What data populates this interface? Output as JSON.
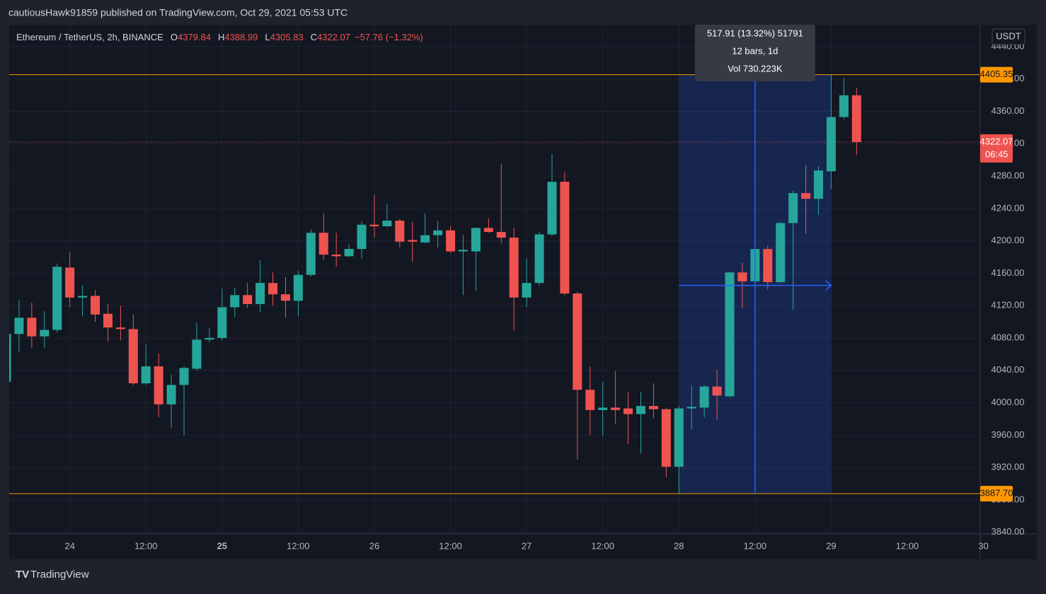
{
  "header": "cautiousHawk91859 published on TradingView.com, Oct 29, 2021 05:53 UTC",
  "footer": "TradingView",
  "chart_data": {
    "type": "candlestick",
    "legend": {
      "symbol": "Ethereum / TetherUS, 2h, BINANCE",
      "items": [
        {
          "label": "O",
          "value": "4379.84"
        },
        {
          "label": "H",
          "value": "4388.99"
        },
        {
          "label": "L",
          "value": "4305.83"
        },
        {
          "label": "C",
          "value": "4322.07"
        }
      ],
      "change": "−57.76 (−1.32%)"
    },
    "currency": "USDT",
    "categories": [
      null,
      null,
      null,
      null,
      null,
      "24",
      null,
      null,
      null,
      null,
      null,
      "12:00",
      null,
      null,
      null,
      null,
      null,
      "25",
      null,
      null,
      null,
      null,
      null,
      "12:00",
      null,
      null,
      null,
      null,
      null,
      "26",
      null,
      null,
      null,
      null,
      null,
      "12:00",
      null,
      null,
      null,
      null,
      null,
      "27",
      null,
      null,
      null,
      null,
      null,
      "12:00",
      null,
      null,
      null,
      null,
      null,
      "28",
      null,
      null,
      null,
      null,
      null,
      "12:00",
      null,
      null,
      null,
      null,
      null,
      "29",
      null,
      null
    ],
    "future_labels": [
      "12:00",
      "30"
    ],
    "open": [
      4026,
      4085,
      4105,
      4082,
      4090,
      4167,
      4130,
      4132,
      4110,
      4093,
      4091,
      4024,
      4045,
      3998,
      4022,
      4042,
      4078,
      4080,
      4118,
      4133,
      4122,
      4148,
      4134,
      4126,
      4158,
      4210,
      4183,
      4181,
      4190,
      4220,
      4218,
      4225,
      4201,
      4198,
      4207,
      4213,
      4187,
      4187,
      4216,
      4211,
      4204,
      4130,
      4148,
      4208,
      4273,
      4135,
      4016,
      3991,
      3994,
      3993,
      3986,
      3996,
      3992,
      3921,
      3993,
      3994,
      4020,
      4008,
      4161,
      4150,
      4190,
      4149,
      4222,
      4259,
      4252,
      4286,
      4353,
      4379.84
    ],
    "high": [
      4090,
      4127,
      4124,
      4113,
      4172,
      4186,
      4145,
      4139,
      4122,
      4120,
      4109,
      4072,
      4061,
      4035,
      4045,
      4099,
      4092,
      4141,
      4142,
      4148,
      4176,
      4161,
      4155,
      4163,
      4214,
      4234,
      4210,
      4196,
      4224,
      4257,
      4246,
      4227,
      4223,
      4234,
      4225,
      4218,
      4207,
      4217,
      4228,
      4295,
      4216,
      4178,
      4211,
      4307,
      4285,
      4137,
      4045,
      4026,
      4039,
      4013,
      4013,
      4024,
      3994,
      3996,
      4021,
      4022,
      4041,
      4162,
      4173,
      4194,
      4194,
      4224,
      4262,
      4294,
      4292,
      4405.35,
      4401,
      4388.99
    ],
    "low": [
      4020,
      4063,
      4068,
      4068,
      4087,
      4118,
      4107,
      4100,
      4076,
      4077,
      4022,
      4022,
      3982,
      3969,
      3960,
      4040,
      4075,
      4077,
      4106,
      4117,
      4112,
      4120,
      4105,
      4107,
      4156,
      4177,
      4168,
      4180,
      4178,
      4204,
      4217,
      4192,
      4174,
      4197,
      4192,
      4185,
      4133,
      4138,
      4210,
      4197,
      4089,
      4118,
      4145,
      4206,
      4133,
      3930,
      3960,
      3959,
      3974,
      3949,
      3937,
      3981,
      3908,
      3887.7,
      3967,
      3982,
      3979,
      4007,
      4117,
      4142,
      4140,
      4148,
      4115,
      4209,
      4232,
      4264,
      4350,
      4305.83
    ],
    "close": [
      4085,
      4105,
      4082,
      4090,
      4168,
      4130,
      4132,
      4109,
      4093,
      4091,
      4024,
      4045,
      3998,
      4022,
      4043,
      4078,
      4080,
      4118,
      4133,
      4122,
      4148,
      4134,
      4126,
      4158,
      4210,
      4183,
      4181,
      4190,
      4220,
      4218,
      4225,
      4199,
      4199,
      4207,
      4213,
      4187,
      4189,
      4216,
      4211,
      4204,
      4130,
      4148,
      4208,
      4273,
      4135,
      4016,
      3991,
      3994,
      3991,
      3986,
      3996,
      3992,
      3921,
      3993,
      3995,
      4020,
      4009,
      4161,
      4150,
      4190,
      4149,
      4222,
      4259,
      4252,
      4287,
      4353,
      4379.84,
      4322.07
    ],
    "up_color": "#26a69a",
    "down_color": "#ef5350",
    "ylim": [
      3838,
      4467
    ],
    "yticks": [
      {
        "value": 4440,
        "label": "4440.00"
      },
      {
        "value": 4400,
        "label": "4400.00"
      },
      {
        "value": 4360,
        "label": "4360.00"
      },
      {
        "value": 4320,
        "label": "4320.00"
      },
      {
        "value": 4280,
        "label": "4280.00"
      },
      {
        "value": 4240,
        "label": "4240.00"
      },
      {
        "value": 4200,
        "label": "4200.00"
      },
      {
        "value": 4160,
        "label": "4160.00"
      },
      {
        "value": 4120,
        "label": "4120.00"
      },
      {
        "value": 4080,
        "label": "4080.00"
      },
      {
        "value": 4040,
        "label": "4040.00"
      },
      {
        "value": 4000,
        "label": "4000.00"
      },
      {
        "value": 3960,
        "label": "3960.00"
      },
      {
        "value": 3920,
        "label": "3920.00"
      },
      {
        "value": 3880,
        "label": "3880.00"
      },
      {
        "value": 3840,
        "label": "3840.00"
      }
    ],
    "grid": true,
    "level_color": "#ff9800",
    "levels": [
      4405.35,
      {
        "value": 3887.7,
        "label": "3887.70"
      }
    ],
    "last_price": 4322.07,
    "countdown": "06:45",
    "measure": {
      "start": 53,
      "end": 65,
      "cross": 59,
      "price": 4145,
      "lines": [
        "517.91 (13.32%) 51791",
        "12 bars, 1d",
        "Vol 730.223K"
      ]
    }
  }
}
